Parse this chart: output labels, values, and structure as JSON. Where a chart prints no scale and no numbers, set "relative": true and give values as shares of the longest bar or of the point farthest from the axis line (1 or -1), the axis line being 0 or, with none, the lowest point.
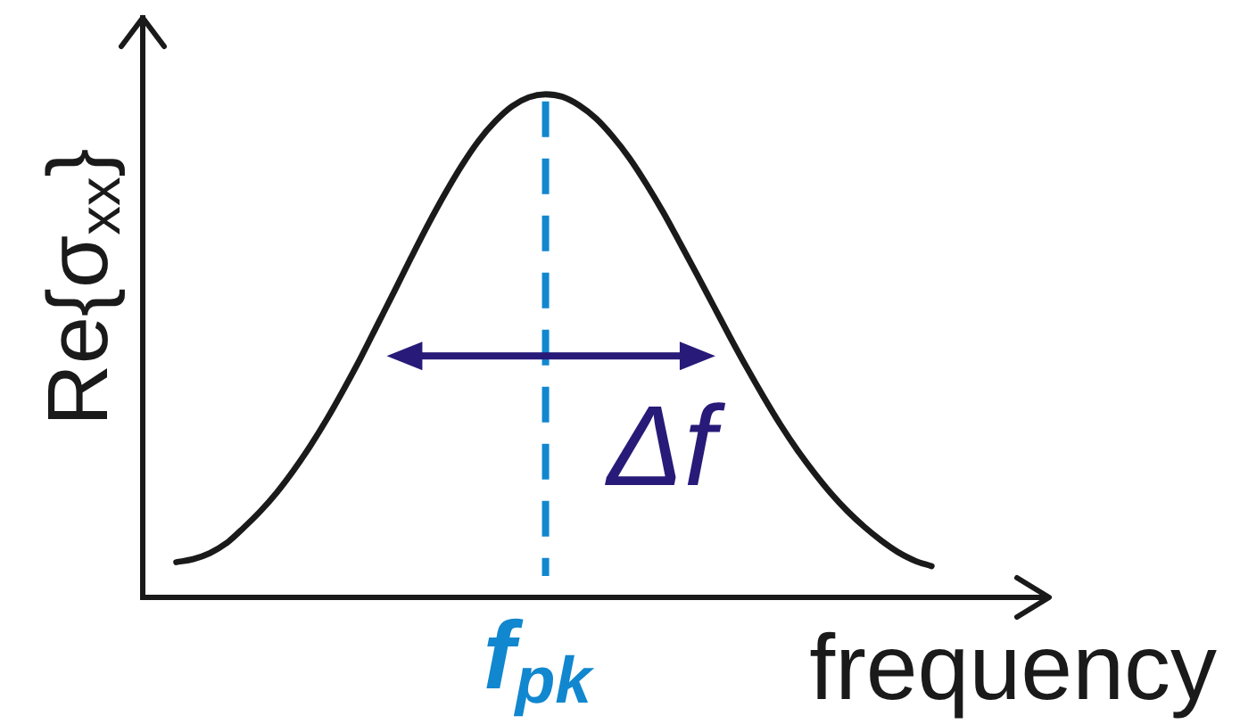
{
  "chart_data": {
    "type": "line",
    "relative": true,
    "categories": [
      null,
      null,
      null,
      null,
      null,
      null,
      null,
      null,
      null,
      null,
      null,
      null,
      null,
      null,
      null,
      null,
      null,
      null,
      null,
      null,
      null,
      null,
      null,
      null,
      null,
      null,
      null,
      null,
      null,
      null,
      null,
      null,
      null,
      null,
      null,
      null,
      null,
      null,
      null,
      null,
      null,
      null,
      null,
      null,
      null,
      null,
      null,
      null,
      null,
      null,
      null,
      null,
      null,
      null,
      null
    ],
    "values": [
      null,
      null,
      0.07,
      0.076,
      0.088,
      0.108,
      0.138,
      0.171,
      0.209,
      0.253,
      0.302,
      0.356,
      0.415,
      0.477,
      0.543,
      0.609,
      0.676,
      0.741,
      0.802,
      0.858,
      0.907,
      0.946,
      0.976,
      0.994,
      1,
      0.995,
      0.978,
      0.952,
      0.916,
      0.873,
      0.822,
      0.766,
      0.705,
      0.643,
      0.58,
      0.517,
      0.456,
      0.398,
      0.343,
      0.293,
      0.248,
      0.207,
      0.171,
      0.14,
      0.113,
      0.09,
      0.073,
      0.062,
      null,
      null,
      null,
      null,
      null,
      null,
      null
    ],
    "color": "#1a1a1a",
    "xlabel": "frequency",
    "ylabel": "Re{σ$_{xx}$}",
    "annotations": [
      "Δf",
      "f$_{pk}$"
    ]
  }
}
